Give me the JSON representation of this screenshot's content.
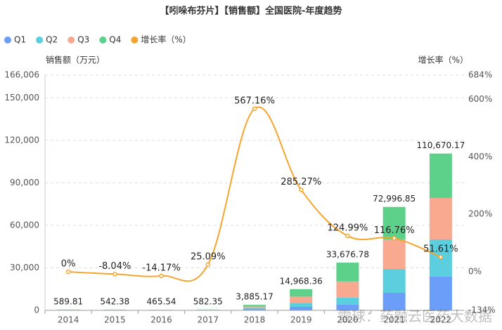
{
  "chart_data": {
    "type": "bar",
    "title": "【吲哚布芬片】【销售额】全国医院-年度趋势",
    "ylabel": "销售额（万元）",
    "y2label": "增长率（%）",
    "watermark": "雪球：药融云医药大数据",
    "categories": [
      "2014",
      "2015",
      "2016",
      "2017",
      "2018",
      "2019",
      "2020",
      "2021",
      "2022"
    ],
    "stacked": true,
    "grid": true,
    "legend": "top-left",
    "series": [
      {
        "name": "Q1",
        "color": "#6a9ef8",
        "values": [
          150,
          135,
          115,
          140,
          800,
          2500,
          4000,
          12400,
          23800
        ]
      },
      {
        "name": "Q2",
        "color": "#5ccfde",
        "values": [
          145,
          130,
          110,
          145,
          900,
          2800,
          5000,
          16800,
          26300
        ]
      },
      {
        "name": "Q3",
        "color": "#f8a98f",
        "values": [
          150,
          140,
          120,
          150,
          1000,
          4400,
          11400,
          20800,
          29200
        ]
      },
      {
        "name": "Q4",
        "color": "#5dd08a",
        "values": [
          144.81,
          137.38,
          120.54,
          147.35,
          1185.17,
          5268.36,
          13276.78,
          22996.85,
          31370.17
        ]
      },
      {
        "name": "增长率（%）",
        "color": "#f5a52e",
        "type": "line",
        "axis": "y2",
        "values": [
          0,
          -8.04,
          -14.17,
          25.09,
          567.16,
          285.27,
          124.99,
          116.76,
          51.61
        ],
        "value_labels": [
          "0%",
          "-8.04%",
          "-14.17%",
          "25.09%",
          "567.16%",
          "285.27%",
          "124.99%",
          "116.76%",
          "51.61%"
        ]
      }
    ],
    "totals": {
      "values": [
        589.81,
        542.38,
        465.54,
        582.35,
        3885.17,
        14968.36,
        33676.78,
        72996.85,
        110670.17
      ],
      "value_labels": [
        "589.81",
        "542.38",
        "465.54",
        "582.35",
        "3,885.17",
        "14,968.36",
        "33,676.78",
        "72,996.85",
        "110,670.17"
      ]
    },
    "ylim": [
      0,
      166006
    ],
    "yticks": [
      0,
      {
        "value": 30000,
        "label": "30,000"
      },
      {
        "value": 60000,
        "label": "60,000"
      },
      {
        "value": 90000,
        "label": "90,000"
      },
      {
        "value": 120000,
        "label": "120,000"
      },
      {
        "value": 150000,
        "label": "150,000"
      },
      {
        "value": 166006,
        "label": "166,006"
      }
    ],
    "y2lim": [
      -134,
      684
    ],
    "y2ticks": [
      {
        "value": -134,
        "label": "-134%"
      },
      {
        "value": 0,
        "label": "0%"
      },
      {
        "value": 200,
        "label": "200%"
      },
      {
        "value": 400,
        "label": "400%"
      },
      {
        "value": 600,
        "label": "600%"
      },
      {
        "value": 684,
        "label": "684%"
      }
    ]
  }
}
